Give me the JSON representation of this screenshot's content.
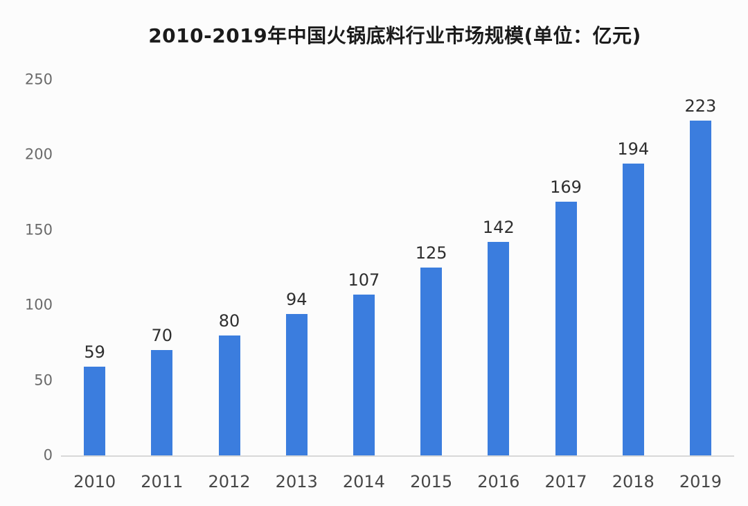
{
  "chart_data": {
    "type": "bar",
    "title": "2010-2019年中国火锅底料行业市场规模(单位：亿元)",
    "unit_label": "亿元",
    "categories": [
      "2010",
      "2011",
      "2012",
      "2013",
      "2014",
      "2015",
      "2016",
      "2017",
      "2018",
      "2019"
    ],
    "values": [
      59,
      70,
      80,
      94,
      107,
      125,
      142,
      169,
      194,
      223
    ],
    "yticks": [
      0,
      50,
      100,
      150,
      200,
      250
    ],
    "ylim": [
      0,
      250
    ],
    "xlabel": "",
    "ylabel": "",
    "grid": false,
    "legend_position": "none",
    "colors": {
      "bar": "#3b7dde",
      "axis_line": "#d8d8d8",
      "title_text": "#1b1b1b",
      "value_label_text": "#2f2f2f",
      "tick_text": "#6a6a6a",
      "background": "#fcfcfc"
    }
  }
}
